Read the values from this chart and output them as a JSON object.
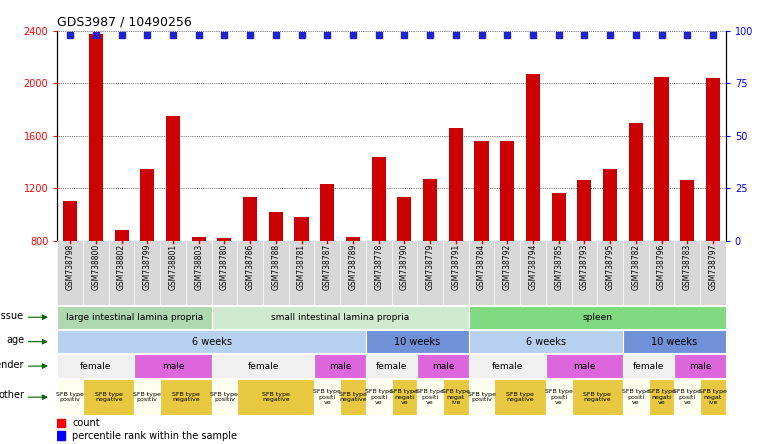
{
  "title": "GDS3987 / 10490256",
  "samples": [
    "GSM738798",
    "GSM738800",
    "GSM738802",
    "GSM738799",
    "GSM738801",
    "GSM738803",
    "GSM738780",
    "GSM738786",
    "GSM738788",
    "GSM738781",
    "GSM738787",
    "GSM738789",
    "GSM738778",
    "GSM738790",
    "GSM738779",
    "GSM738791",
    "GSM738784",
    "GSM738792",
    "GSM738794",
    "GSM738785",
    "GSM738793",
    "GSM738795",
    "GSM738782",
    "GSM738796",
    "GSM738783",
    "GSM738797"
  ],
  "counts": [
    1100,
    2380,
    880,
    1350,
    1750,
    830,
    820,
    1130,
    1020,
    980,
    1230,
    830,
    1440,
    1130,
    1270,
    1660,
    1560,
    1560,
    2070,
    1160,
    1260,
    1350,
    1700,
    2050,
    1260,
    2040
  ],
  "bar_color": "#cc0000",
  "dot_color": "#2222cc",
  "ymin": 800,
  "ymax": 2400,
  "yticks_left": [
    800,
    1200,
    1600,
    2000,
    2400
  ],
  "yticks_right": [
    0,
    25,
    50,
    75,
    100
  ],
  "tissue_groups": [
    {
      "label": "large intestinal lamina propria",
      "start": 0,
      "end": 6,
      "color": "#b0d8b0"
    },
    {
      "label": "small intestinal lamina propria",
      "start": 6,
      "end": 16,
      "color": "#d0ead0"
    },
    {
      "label": "spleen",
      "start": 16,
      "end": 26,
      "color": "#80d880"
    }
  ],
  "age_groups": [
    {
      "label": "6 weeks",
      "start": 0,
      "end": 12,
      "color": "#b8d0f0"
    },
    {
      "label": "10 weeks",
      "start": 12,
      "end": 16,
      "color": "#7090d8"
    },
    {
      "label": "6 weeks",
      "start": 16,
      "end": 22,
      "color": "#b8d0f0"
    },
    {
      "label": "10 weeks",
      "start": 22,
      "end": 26,
      "color": "#7090d8"
    }
  ],
  "gender_groups": [
    {
      "label": "female",
      "start": 0,
      "end": 3,
      "color": "#f0f0f0"
    },
    {
      "label": "male",
      "start": 3,
      "end": 6,
      "color": "#dd66dd"
    },
    {
      "label": "female",
      "start": 6,
      "end": 10,
      "color": "#f0f0f0"
    },
    {
      "label": "male",
      "start": 10,
      "end": 12,
      "color": "#dd66dd"
    },
    {
      "label": "female",
      "start": 12,
      "end": 14,
      "color": "#f0f0f0"
    },
    {
      "label": "male",
      "start": 14,
      "end": 16,
      "color": "#dd66dd"
    },
    {
      "label": "female",
      "start": 16,
      "end": 19,
      "color": "#f0f0f0"
    },
    {
      "label": "male",
      "start": 19,
      "end": 22,
      "color": "#dd66dd"
    },
    {
      "label": "female",
      "start": 22,
      "end": 24,
      "color": "#f0f0f0"
    },
    {
      "label": "male",
      "start": 24,
      "end": 26,
      "color": "#dd66dd"
    }
  ],
  "other_groups": [
    {
      "label": "SFB type\npositiv",
      "start": 0,
      "end": 1,
      "color": "#fffff0"
    },
    {
      "label": "SFB type\nnegative",
      "start": 1,
      "end": 3,
      "color": "#e8c840"
    },
    {
      "label": "SFB type\npositiv",
      "start": 3,
      "end": 4,
      "color": "#fffff0"
    },
    {
      "label": "SFB type\nnegative",
      "start": 4,
      "end": 6,
      "color": "#e8c840"
    },
    {
      "label": "SFB type\npositiv",
      "start": 6,
      "end": 7,
      "color": "#fffff0"
    },
    {
      "label": "SFB type\nnegative",
      "start": 7,
      "end": 10,
      "color": "#e8c840"
    },
    {
      "label": "SFB type\npositi\nve",
      "start": 10,
      "end": 11,
      "color": "#fffff0"
    },
    {
      "label": "SFB type\nnegative",
      "start": 11,
      "end": 12,
      "color": "#e8c840"
    },
    {
      "label": "SFB type\npositi\nve",
      "start": 12,
      "end": 13,
      "color": "#fffff0"
    },
    {
      "label": "SFB type\nnegati\nve",
      "start": 13,
      "end": 14,
      "color": "#e8c840"
    },
    {
      "label": "SFB type\npositi\nve",
      "start": 14,
      "end": 15,
      "color": "#fffff0"
    },
    {
      "label": "SFB type\nnegat\nive",
      "start": 15,
      "end": 16,
      "color": "#e8c840"
    },
    {
      "label": "SFB type\npositiv",
      "start": 16,
      "end": 17,
      "color": "#fffff0"
    },
    {
      "label": "SFB type\nnegative",
      "start": 17,
      "end": 19,
      "color": "#e8c840"
    },
    {
      "label": "SFB type\npositi\nve",
      "start": 19,
      "end": 20,
      "color": "#fffff0"
    },
    {
      "label": "SFB type\nnegative",
      "start": 20,
      "end": 22,
      "color": "#e8c840"
    },
    {
      "label": "SFB type\npositi\nve",
      "start": 22,
      "end": 23,
      "color": "#fffff0"
    },
    {
      "label": "SFB type\nnegati\nve",
      "start": 23,
      "end": 24,
      "color": "#e8c840"
    },
    {
      "label": "SFB type\npositi\nve",
      "start": 24,
      "end": 25,
      "color": "#fffff0"
    },
    {
      "label": "SFB type\nnegat\nive",
      "start": 25,
      "end": 26,
      "color": "#e8c840"
    }
  ],
  "xlabel_bg_color": "#d8d8d8",
  "row_label_fontsize": 7,
  "row_content_fontsize": 7,
  "bar_fontsize": 6,
  "sample_fontsize": 5.5
}
